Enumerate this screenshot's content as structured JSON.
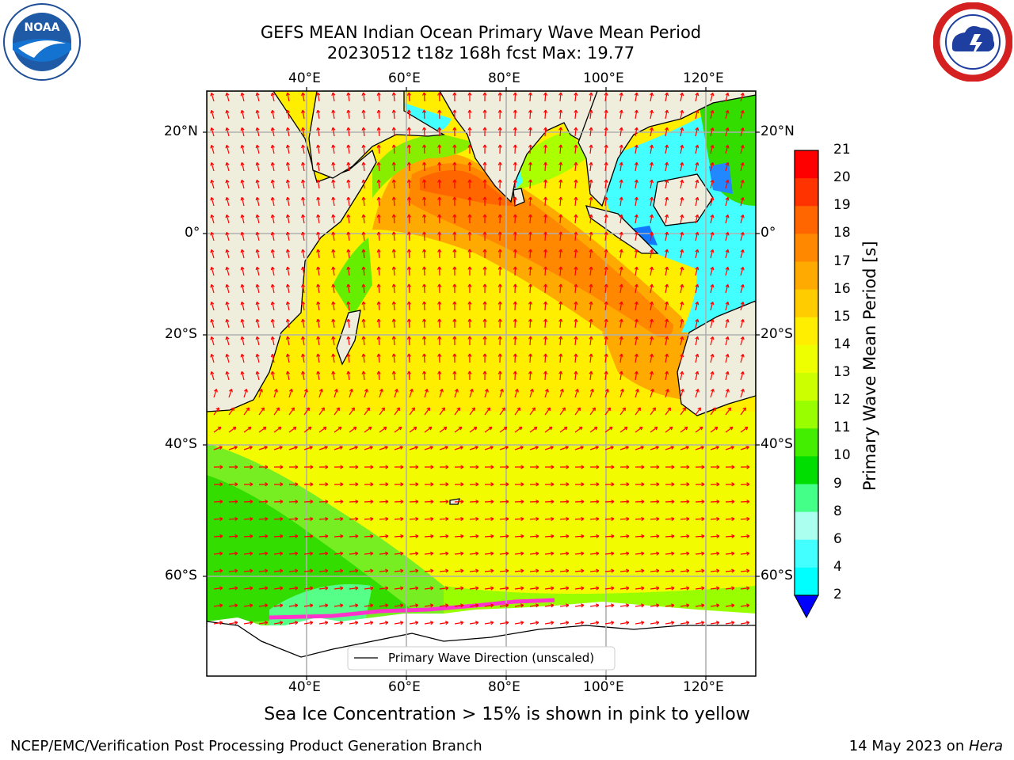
{
  "title_line1": "GEFS MEAN Indian Ocean Primary Wave Mean Period",
  "title_line2": "20230512 t18z 168h fcst   Max: 19.77",
  "logos": {
    "noaa": "NOAA",
    "nws": "NATIONAL WEATHER SERVICE"
  },
  "map": {
    "lon_ticks": [
      "40°E",
      "60°E",
      "80°E",
      "100°E",
      "120°E"
    ],
    "lat_ticks": [
      "20°N",
      "0°",
      "20°S",
      "40°S",
      "60°S"
    ],
    "legend_label": "Primary Wave Direction (unscaled)",
    "arrow_color": "#ff0000",
    "land_color": "#efeedd",
    "ice_color": "#ffffff"
  },
  "colorbar": {
    "label": "Primary Wave Mean Period [s]",
    "ticks": [
      "21",
      "20",
      "19",
      "18",
      "17",
      "16",
      "15",
      "14",
      "13",
      "12",
      "11",
      "10",
      "9",
      "8",
      "6",
      "4",
      "2"
    ],
    "colors": [
      "#ff0000",
      "#ff3300",
      "#ff6600",
      "#ff8800",
      "#ffaa00",
      "#ffcc00",
      "#ffee00",
      "#eeff00",
      "#ccff00",
      "#99ff00",
      "#44ee00",
      "#00dd00",
      "#44ff88",
      "#aaffee",
      "#44ffff",
      "#00ffff",
      "#0088ff",
      "#0000ff"
    ]
  },
  "note": "Sea Ice Concentration > 15% is shown in pink to yellow",
  "footer_left": "NCEP/EMC/Verification Post Processing Product Generation Branch",
  "footer_right_date": "14 May 2023 on ",
  "footer_right_host": "Hera"
}
